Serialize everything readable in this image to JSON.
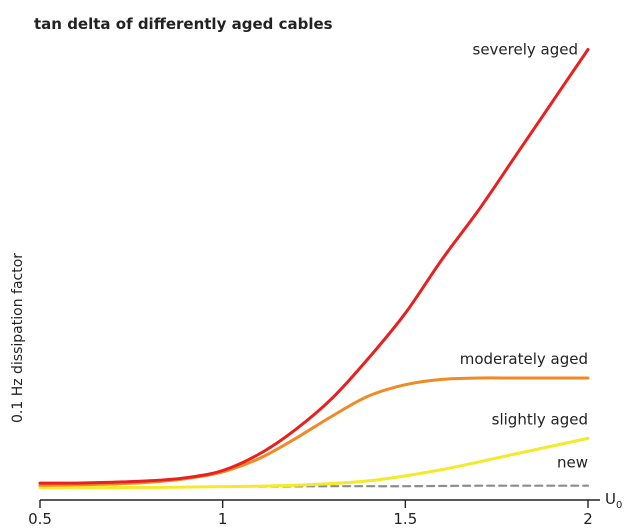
{
  "chart_data": {
    "type": "line",
    "title": "tan delta of differently aged cables",
    "xlabel": "U",
    "xlabel_sub": "0",
    "ylabel": "0.1 Hz dissipation factor",
    "xlim": [
      0.5,
      2.0
    ],
    "ylim": [
      0,
      1
    ],
    "x_ticks": [
      "0.5",
      "1",
      "1.5",
      "2"
    ],
    "x_tick_values": [
      0.5,
      1.0,
      1.5,
      2.0
    ],
    "grid": false,
    "series": [
      {
        "name": "severely aged",
        "color": "#e8201f",
        "style": "solid",
        "x": [
          0.5,
          0.6,
          0.7,
          0.8,
          0.9,
          1.0,
          1.1,
          1.2,
          1.3,
          1.4,
          1.5,
          1.6,
          1.7,
          1.8,
          1.9,
          2.0
        ],
        "y": [
          0.02,
          0.02,
          0.022,
          0.025,
          0.032,
          0.048,
          0.085,
          0.14,
          0.21,
          0.3,
          0.4,
          0.52,
          0.63,
          0.75,
          0.87,
          0.99
        ]
      },
      {
        "name": "moderately aged",
        "color": "#f08a24",
        "style": "solid",
        "x": [
          0.5,
          0.6,
          0.7,
          0.8,
          0.9,
          1.0,
          1.1,
          1.2,
          1.3,
          1.4,
          1.5,
          1.6,
          1.7,
          1.8,
          1.9,
          2.0
        ],
        "y": [
          0.015,
          0.016,
          0.018,
          0.022,
          0.03,
          0.045,
          0.075,
          0.12,
          0.17,
          0.215,
          0.24,
          0.252,
          0.255,
          0.255,
          0.255,
          0.255
        ]
      },
      {
        "name": "slightly aged",
        "color": "#f2ea2b",
        "style": "solid",
        "x": [
          0.5,
          0.75,
          1.0,
          1.2,
          1.4,
          1.6,
          1.8,
          2.0
        ],
        "y": [
          0.01,
          0.01,
          0.012,
          0.015,
          0.025,
          0.05,
          0.085,
          0.12
        ]
      },
      {
        "name": "new",
        "color": "#8c8c8c",
        "style": "dashed",
        "x": [
          1.1,
          1.3,
          1.5,
          1.7,
          1.9,
          2.0
        ],
        "y": [
          0.012,
          0.013,
          0.013,
          0.014,
          0.014,
          0.014
        ]
      }
    ]
  }
}
